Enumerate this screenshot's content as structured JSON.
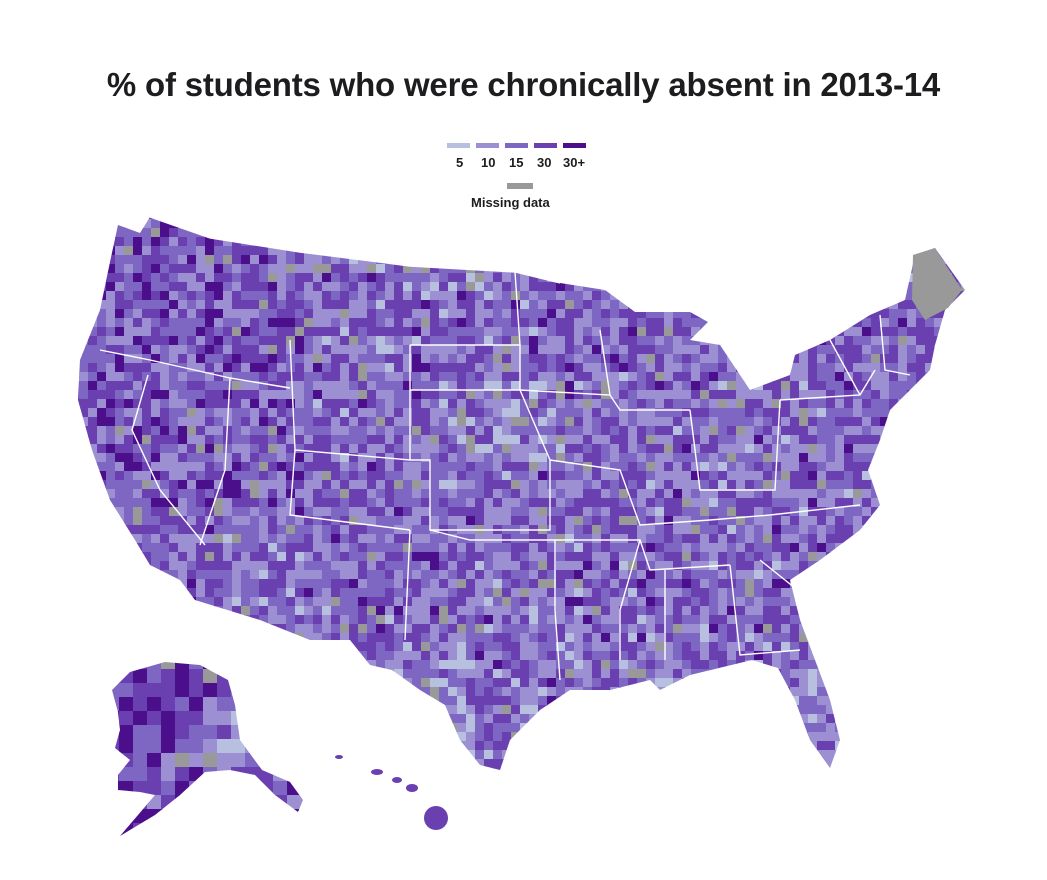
{
  "title": "% of students who were chronically absent in 2013-14",
  "legend": {
    "bins": [
      {
        "label": "5",
        "color": "#b8c0e0"
      },
      {
        "label": "10",
        "color": "#9c8fd2"
      },
      {
        "label": "15",
        "color": "#7e67c2"
      },
      {
        "label": "30",
        "color": "#6a3fb0"
      },
      {
        "label": "30+",
        "color": "#4b0f8c"
      }
    ],
    "missing": {
      "label": "Missing data",
      "color": "#999999"
    }
  },
  "colors": {
    "state_border": "#ffffff",
    "background": "#ffffff"
  },
  "regions": [
    "contiguous-us",
    "alaska",
    "hawaii"
  ]
}
